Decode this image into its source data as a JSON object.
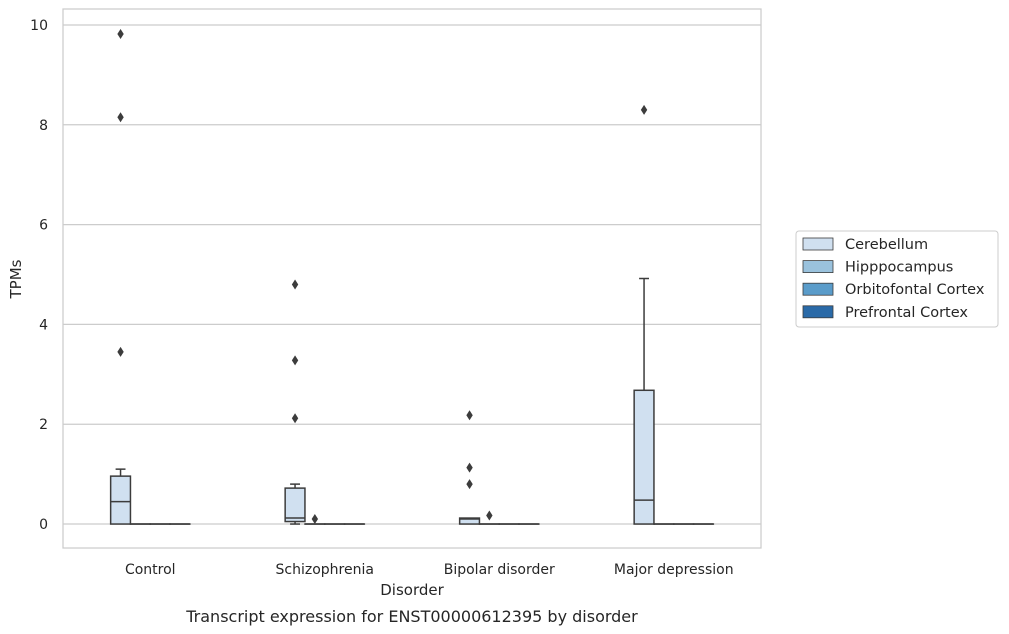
{
  "chart_data": {
    "type": "box",
    "title": "Transcript expression for ENST00000612395 by disorder",
    "xlabel": "Disorder",
    "ylabel": "TPMs",
    "ylim": [
      -0.48,
      10.32
    ],
    "yticks": [
      0,
      2,
      4,
      6,
      8,
      10
    ],
    "grid": true,
    "legend_position": "right",
    "categories": [
      "Control",
      "Schizophrenia",
      "Bipolar disorder",
      "Major depression"
    ],
    "series": [
      {
        "name": "Cerebellum",
        "color": "#d0e0f0",
        "boxes": [
          {
            "whislo": 0.0,
            "q1": 0.0,
            "med": 0.45,
            "q3": 0.96,
            "whishi": 1.1,
            "fliers": [
              3.45,
              8.15,
              9.82
            ]
          },
          {
            "whislo": 0.0,
            "q1": 0.05,
            "med": 0.12,
            "q3": 0.72,
            "whishi": 0.8,
            "fliers": [
              2.12,
              3.28,
              4.8
            ]
          },
          {
            "whislo": 0.0,
            "q1": 0.0,
            "med": 0.1,
            "q3": 0.12,
            "whishi": 0.12,
            "fliers": [
              0.8,
              1.13,
              2.18
            ]
          },
          {
            "whislo": 0.0,
            "q1": 0.0,
            "med": 0.48,
            "q3": 2.68,
            "whishi": 4.92,
            "fliers": [
              8.3
            ]
          }
        ]
      },
      {
        "name": "Hipppocampus",
        "color": "#9ac2dd",
        "boxes": [
          {
            "whislo": 0,
            "q1": 0,
            "med": 0,
            "q3": 0,
            "whishi": 0,
            "fliers": []
          },
          {
            "whislo": 0,
            "q1": 0,
            "med": 0,
            "q3": 0,
            "whishi": 0,
            "fliers": [
              0.1
            ]
          },
          {
            "whislo": 0,
            "q1": 0,
            "med": 0,
            "q3": 0,
            "whishi": 0,
            "fliers": [
              0.17
            ]
          },
          {
            "whislo": 0,
            "q1": 0,
            "med": 0,
            "q3": 0,
            "whishi": 0,
            "fliers": []
          }
        ]
      },
      {
        "name": "Orbitofontal Cortex",
        "color": "#5a9cca",
        "boxes": [
          {
            "whislo": 0,
            "q1": 0,
            "med": 0,
            "q3": 0,
            "whishi": 0,
            "fliers": []
          },
          {
            "whislo": 0,
            "q1": 0,
            "med": 0,
            "q3": 0,
            "whishi": 0,
            "fliers": []
          },
          {
            "whislo": 0,
            "q1": 0,
            "med": 0,
            "q3": 0,
            "whishi": 0,
            "fliers": []
          },
          {
            "whislo": 0,
            "q1": 0,
            "med": 0,
            "q3": 0,
            "whishi": 0,
            "fliers": []
          }
        ]
      },
      {
        "name": "Prefrontal Cortex",
        "color": "#2a6aa8",
        "boxes": [
          {
            "whislo": 0,
            "q1": 0,
            "med": 0,
            "q3": 0,
            "whishi": 0,
            "fliers": []
          },
          {
            "whislo": 0,
            "q1": 0,
            "med": 0,
            "q3": 0,
            "whishi": 0,
            "fliers": []
          },
          {
            "whislo": 0,
            "q1": 0,
            "med": 0,
            "q3": 0,
            "whishi": 0,
            "fliers": []
          },
          {
            "whislo": 0,
            "q1": 0,
            "med": 0,
            "q3": 0,
            "whishi": 0,
            "fliers": []
          }
        ]
      }
    ]
  }
}
